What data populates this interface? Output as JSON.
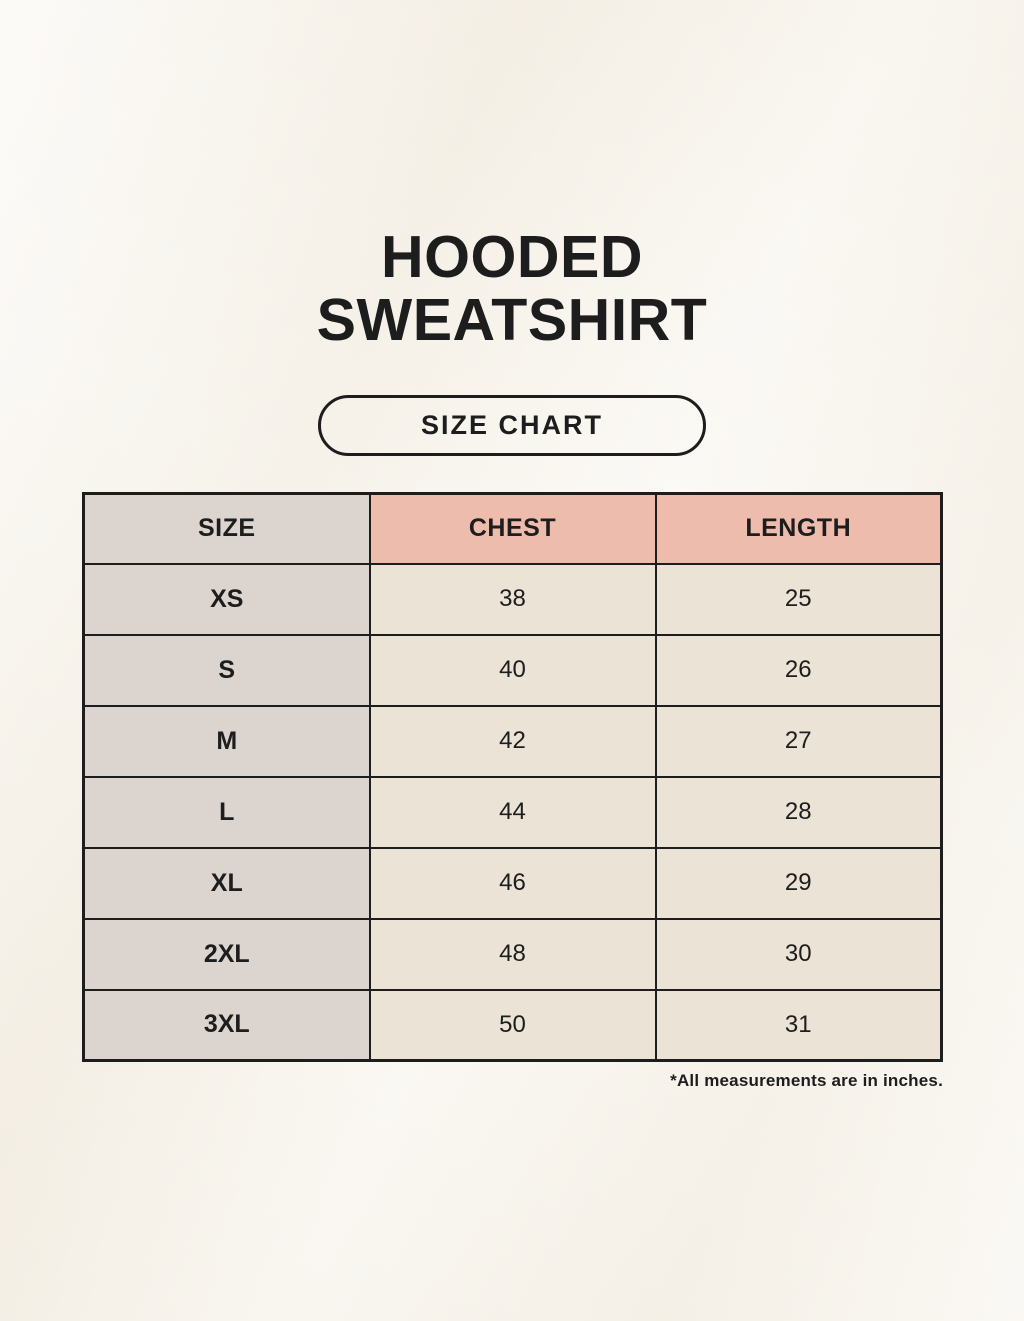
{
  "title": {
    "line1": "HOODED",
    "line2": "SWEATSHIRT"
  },
  "size_chart_button": {
    "label": "SIZE CHART"
  },
  "footnote": "*All measurements are in inches.",
  "colors": {
    "background": "#f8f4ec",
    "header_accent": "#eebcac",
    "size_column_bg": "#dbd4cf",
    "value_cell_bg": "#eae3d6",
    "border_and_text": "#1d1d1d"
  },
  "chart_data": {
    "type": "table",
    "title": "HOODED SWEATSHIRT",
    "subtitle": "SIZE CHART",
    "columns": [
      "SIZE",
      "CHEST",
      "LENGTH"
    ],
    "rows": [
      {
        "size": "XS",
        "chest": "38",
        "length": "25"
      },
      {
        "size": "S",
        "chest": "40",
        "length": "26"
      },
      {
        "size": "M",
        "chest": "42",
        "length": "27"
      },
      {
        "size": "L",
        "chest": "44",
        "length": "28"
      },
      {
        "size": "XL",
        "chest": "46",
        "length": "29"
      },
      {
        "size": "2XL",
        "chest": "48",
        "length": "30"
      },
      {
        "size": "3XL",
        "chest": "50",
        "length": "31"
      }
    ],
    "note": "*All measurements are in inches.",
    "units": "inches"
  }
}
